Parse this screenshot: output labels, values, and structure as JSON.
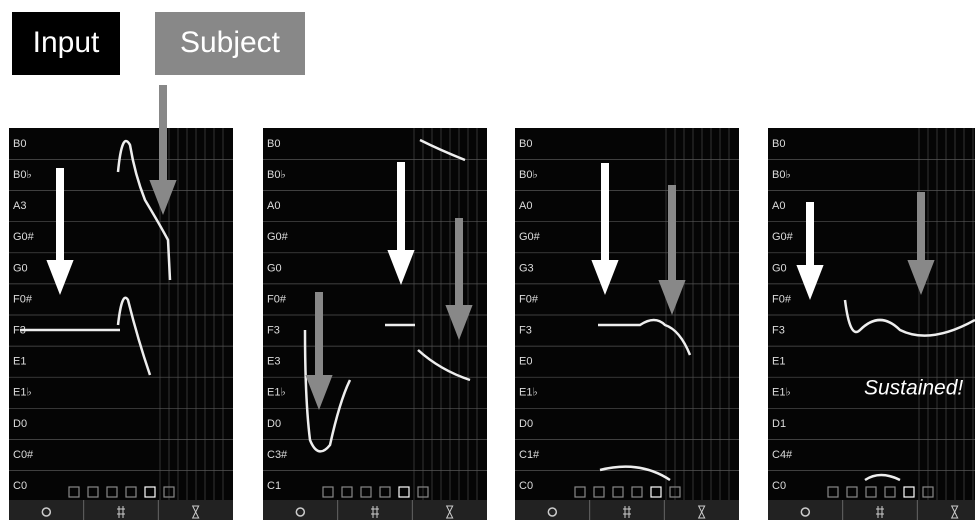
{
  "legend": {
    "input": "Input",
    "subject": "Subject"
  },
  "panels": [
    {
      "note_labels": [
        "B0",
        "B0♭",
        "A3",
        "G0#",
        "G0",
        "F0#",
        "F3",
        "E1",
        "E1♭",
        "D0",
        "C0#",
        "C0"
      ]
    },
    {
      "note_labels": [
        "B0",
        "B0♭",
        "A0",
        "G0#",
        "G0",
        "F0#",
        "F3",
        "E3",
        "E1♭",
        "D0",
        "C3#",
        "C1"
      ]
    },
    {
      "note_labels": [
        "B0",
        "B0♭",
        "A0",
        "G0#",
        "G3",
        "F0#",
        "F3",
        "E0",
        "E1♭",
        "D0",
        "C1#",
        "C0"
      ]
    },
    {
      "note_labels": [
        "B0",
        "B0♭",
        "A0",
        "G0#",
        "G0",
        "F0#",
        "F3",
        "E1",
        "E1♭",
        "D1",
        "C4#",
        "C0"
      ],
      "annotation": "Sustained!"
    }
  ]
}
